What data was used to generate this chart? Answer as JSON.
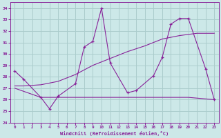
{
  "xlabel": "Windchill (Refroidissement éolien,°C)",
  "background_color": "#cce8e8",
  "grid_color": "#aacccc",
  "line_color": "#882299",
  "xlim": [
    -0.5,
    23.5
  ],
  "ylim": [
    24,
    34.5
  ],
  "yticks": [
    24,
    25,
    26,
    27,
    28,
    29,
    30,
    31,
    32,
    33,
    34
  ],
  "xticks": [
    0,
    1,
    2,
    3,
    4,
    5,
    6,
    7,
    8,
    9,
    10,
    11,
    12,
    13,
    14,
    15,
    16,
    17,
    18,
    19,
    20,
    21,
    22,
    23
  ],
  "series1_x": [
    0,
    1,
    3,
    4,
    5,
    7,
    8,
    9,
    10,
    11,
    13,
    14,
    16,
    17,
    18,
    19,
    20,
    22,
    23
  ],
  "series1_y": [
    28.5,
    27.8,
    26.2,
    25.2,
    26.3,
    27.4,
    30.6,
    31.1,
    34.0,
    29.2,
    26.6,
    26.8,
    28.1,
    29.7,
    32.6,
    33.1,
    33.1,
    28.7,
    26.0
  ],
  "series2_x": [
    0,
    3,
    10,
    20,
    23
  ],
  "series2_y": [
    27.0,
    26.2,
    26.2,
    26.2,
    26.0
  ],
  "series3_x": [
    0,
    1,
    3,
    5,
    7,
    9,
    11,
    13,
    15,
    17,
    19,
    21,
    23
  ],
  "series3_y": [
    27.2,
    27.2,
    27.3,
    27.6,
    28.2,
    29.0,
    29.6,
    30.2,
    30.7,
    31.3,
    31.6,
    31.8,
    31.8
  ]
}
